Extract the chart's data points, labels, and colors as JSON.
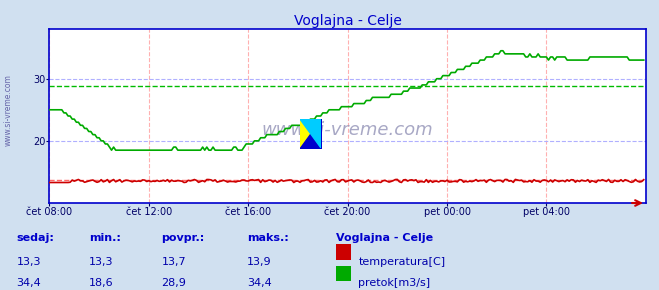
{
  "title": "Voglajna - Celje",
  "bg_color": "#d0e0f0",
  "plot_bg_color": "#ffffff",
  "grid_color_v": "#ffb0b0",
  "grid_color_h": "#b0b0ff",
  "avg_flow_value": 28.9,
  "avg_temp_value": 13.7,
  "x_ticks_labels": [
    "čet 08:00",
    "čet 12:00",
    "čet 16:00",
    "čet 20:00",
    "pet 00:00",
    "pet 04:00"
  ],
  "x_tick_positions": [
    0,
    48,
    96,
    144,
    192,
    240
  ],
  "y_ticks": [
    20,
    30
  ],
  "ylim": [
    10,
    38
  ],
  "xlim": [
    0,
    288
  ],
  "temp_color": "#cc0000",
  "flow_color": "#00aa00",
  "avg_flow_color": "#00bb00",
  "avg_temp_color": "#ff6666",
  "watermark": "www.si-vreme.com",
  "watermark_color": "#9999bb",
  "sidebar_text": "www.si-vreme.com",
  "legend_title": "Voglajna - Celje",
  "legend_items": [
    "temperatura[C]",
    "pretok[m3/s]"
  ],
  "legend_colors": [
    "#cc0000",
    "#00aa00"
  ],
  "stats_headers": [
    "sedaj:",
    "min.:",
    "povpr.:",
    "maks.:"
  ],
  "stats_temp": [
    "13,3",
    "13,3",
    "13,7",
    "13,9"
  ],
  "stats_flow": [
    "34,4",
    "18,6",
    "28,9",
    "34,4"
  ],
  "header_color": "#0000cc",
  "value_color": "#0000aa",
  "spine_color": "#0000cc",
  "arrow_color": "#cc0000"
}
